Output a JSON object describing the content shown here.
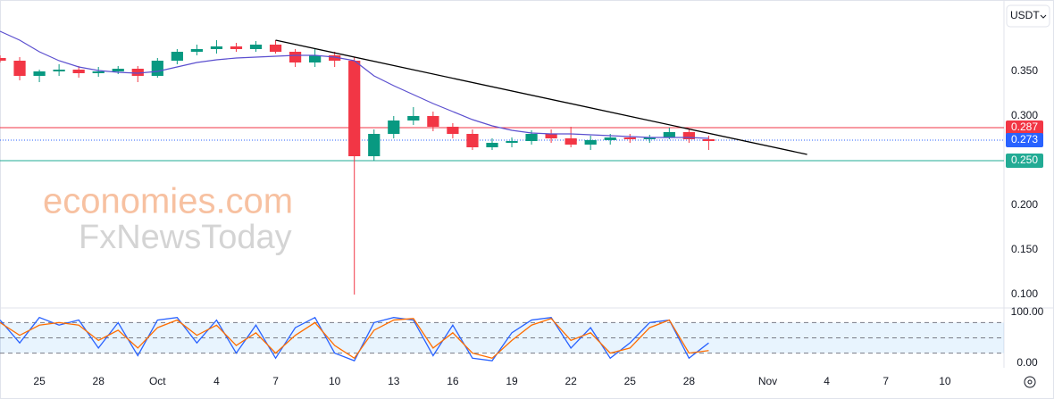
{
  "chart_data": {
    "type": "candlestick",
    "currency": "USDT",
    "watermark": [
      "economies.com",
      "FxNewsToday"
    ],
    "x": [
      "09-23",
      "09-24",
      "09-25",
      "09-26",
      "09-27",
      "09-28",
      "09-29",
      "09-30",
      "10-01",
      "10-02",
      "10-03",
      "10-04",
      "10-05",
      "10-06",
      "10-07",
      "10-08",
      "10-09",
      "10-10",
      "10-11",
      "10-12",
      "10-13",
      "10-14",
      "10-15",
      "10-16",
      "10-17",
      "10-18",
      "10-19",
      "10-20",
      "10-21",
      "10-22",
      "10-23",
      "10-24",
      "10-25",
      "10-26",
      "10-27",
      "10-28",
      "10-29"
    ],
    "open": [
      0.365,
      0.362,
      0.345,
      0.35,
      0.352,
      0.348,
      0.35,
      0.353,
      0.345,
      0.362,
      0.372,
      0.375,
      0.378,
      0.375,
      0.38,
      0.372,
      0.36,
      0.368,
      0.362,
      0.255,
      0.28,
      0.295,
      0.3,
      0.288,
      0.28,
      0.265,
      0.27,
      0.272,
      0.28,
      0.275,
      0.268,
      0.273,
      0.276,
      0.274,
      0.276,
      0.282,
      0.274
    ],
    "high": [
      0.368,
      0.366,
      0.352,
      0.358,
      0.356,
      0.355,
      0.356,
      0.356,
      0.365,
      0.375,
      0.38,
      0.385,
      0.382,
      0.384,
      0.385,
      0.375,
      0.375,
      0.372,
      0.366,
      0.285,
      0.3,
      0.31,
      0.305,
      0.292,
      0.285,
      0.275,
      0.276,
      0.284,
      0.285,
      0.288,
      0.278,
      0.28,
      0.28,
      0.279,
      0.287,
      0.285,
      0.278
    ],
    "low": [
      0.36,
      0.34,
      0.338,
      0.345,
      0.343,
      0.344,
      0.347,
      0.338,
      0.343,
      0.358,
      0.368,
      0.37,
      0.372,
      0.372,
      0.37,
      0.355,
      0.355,
      0.355,
      0.1,
      0.25,
      0.275,
      0.29,
      0.283,
      0.275,
      0.262,
      0.262,
      0.265,
      0.268,
      0.27,
      0.265,
      0.262,
      0.268,
      0.27,
      0.27,
      0.274,
      0.27,
      0.262
    ],
    "close": [
      0.362,
      0.345,
      0.35,
      0.352,
      0.348,
      0.35,
      0.353,
      0.345,
      0.362,
      0.372,
      0.375,
      0.378,
      0.375,
      0.38,
      0.372,
      0.36,
      0.368,
      0.362,
      0.255,
      0.28,
      0.295,
      0.3,
      0.288,
      0.28,
      0.265,
      0.27,
      0.272,
      0.28,
      0.275,
      0.268,
      0.273,
      0.276,
      0.274,
      0.276,
      0.282,
      0.274,
      0.272
    ],
    "up_color": "#089981",
    "down_color": "#f23645",
    "moving_average": {
      "color": "#5b4fcf",
      "values": [
        0.395,
        0.385,
        0.372,
        0.362,
        0.355,
        0.351,
        0.349,
        0.348,
        0.35,
        0.355,
        0.36,
        0.363,
        0.365,
        0.366,
        0.367,
        0.368,
        0.368,
        0.366,
        0.362,
        0.345,
        0.334,
        0.324,
        0.314,
        0.305,
        0.296,
        0.289,
        0.284,
        0.281,
        0.28,
        0.28,
        0.279,
        0.278,
        0.277,
        0.276,
        0.276,
        0.276,
        0.275
      ]
    },
    "trendline": {
      "color": "#000000",
      "x": [
        "10-07",
        "11-03"
      ],
      "values": [
        0.385,
        0.257
      ]
    },
    "levels": [
      {
        "value": 0.287,
        "label": "0.287",
        "color": "#f23645",
        "style": "solid"
      },
      {
        "value": 0.273,
        "label": "0.273",
        "color": "#2962ff",
        "style": "dotted"
      },
      {
        "value": 0.25,
        "label": "0.250",
        "color": "#22ab94",
        "style": "solid"
      }
    ],
    "xlim": [
      "09-23",
      "11-13"
    ],
    "ylim": [
      0.085,
      0.43
    ],
    "yticks": [
      {
        "value": 0.35,
        "label": "0.350"
      },
      {
        "value": 0.3,
        "label": "0.300"
      },
      {
        "value": 0.2,
        "label": "0.200"
      },
      {
        "value": 0.15,
        "label": "0.150"
      },
      {
        "value": 0.1,
        "label": "0.100"
      }
    ],
    "xticks": [
      {
        "value": "09-25",
        "label": "25"
      },
      {
        "value": "09-28",
        "label": "28"
      },
      {
        "value": "10-01",
        "label": "Oct"
      },
      {
        "value": "10-04",
        "label": "4"
      },
      {
        "value": "10-07",
        "label": "7"
      },
      {
        "value": "10-10",
        "label": "10"
      },
      {
        "value": "10-13",
        "label": "13"
      },
      {
        "value": "10-16",
        "label": "16"
      },
      {
        "value": "10-19",
        "label": "19"
      },
      {
        "value": "10-22",
        "label": "22"
      },
      {
        "value": "10-25",
        "label": "25"
      },
      {
        "value": "10-28",
        "label": "28"
      },
      {
        "value": "11-01",
        "label": "Nov"
      },
      {
        "value": "11-04",
        "label": "4"
      },
      {
        "value": "11-07",
        "label": "7"
      },
      {
        "value": "11-10",
        "label": "10"
      }
    ],
    "stochastic": {
      "ylim": [
        0,
        100
      ],
      "yticks": [
        {
          "value": 100,
          "label": "100.00"
        },
        {
          "value": 0,
          "label": "0.00"
        }
      ],
      "bands": [
        20,
        50,
        80
      ],
      "series": [
        {
          "color": "#2962ff",
          "values": [
            85,
            40,
            90,
            75,
            85,
            30,
            80,
            15,
            85,
            90,
            40,
            85,
            20,
            75,
            10,
            70,
            90,
            20,
            5,
            80,
            90,
            85,
            15,
            75,
            10,
            5,
            60,
            85,
            90,
            30,
            70,
            10,
            40,
            80,
            85,
            10,
            40
          ]
        },
        {
          "color": "#ff6d00",
          "values": [
            80,
            55,
            75,
            80,
            75,
            45,
            65,
            30,
            70,
            85,
            55,
            75,
            35,
            60,
            20,
            55,
            80,
            35,
            10,
            65,
            85,
            88,
            30,
            60,
            20,
            10,
            45,
            75,
            88,
            45,
            60,
            20,
            30,
            70,
            85,
            20,
            25
          ]
        }
      ]
    }
  }
}
